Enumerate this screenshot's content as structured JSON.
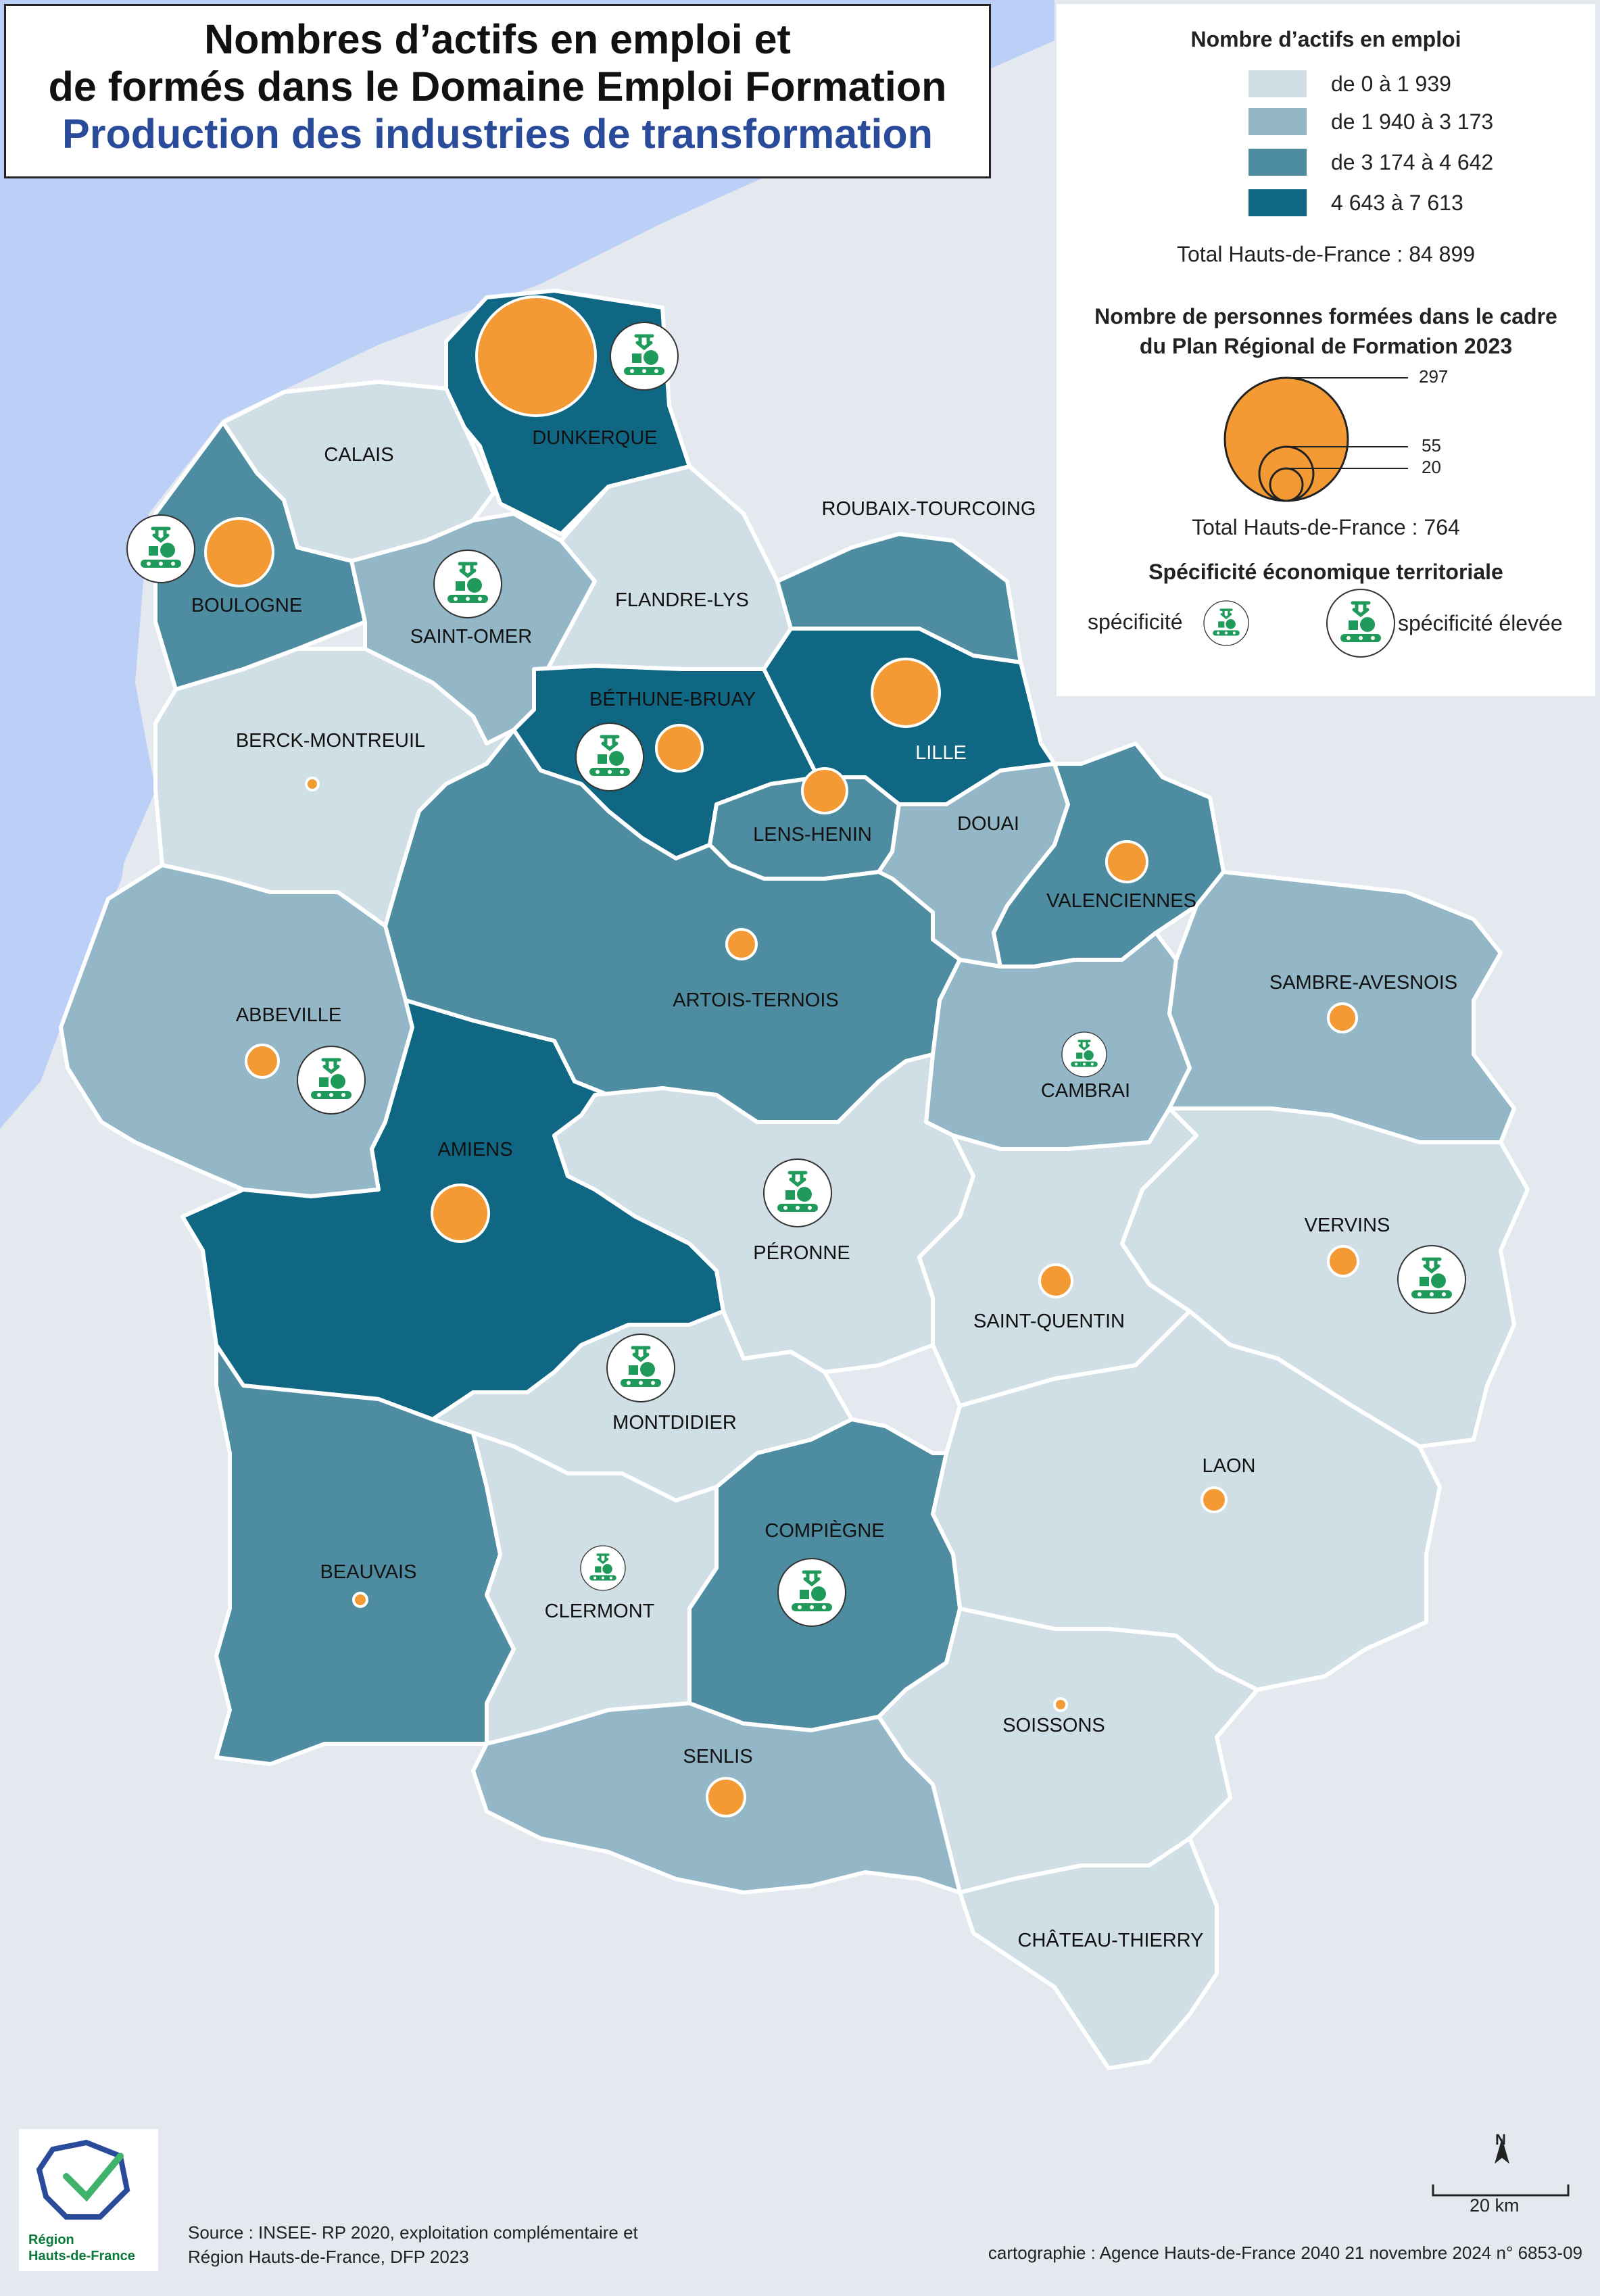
{
  "title": {
    "line1": "Nombres d’actifs en emploi et",
    "line2": "de formés dans le Domaine Emploi Formation",
    "line3": "Production des industries de transformation"
  },
  "legend": {
    "employment_title": "Nombre d’actifs en emploi",
    "classes": [
      {
        "label": "de 0 à 1 939",
        "color": "#d0dfe6"
      },
      {
        "label": "de 1 940 à 3 173",
        "color": "#93b7c6"
      },
      {
        "label": "de 3 174 à 4 642",
        "color": "#4d8ca1"
      },
      {
        "label": "4 643 à 7 613",
        "color": "#106783"
      }
    ],
    "employment_total": "Total Hauts-de-France : 84 899",
    "trained_title_1": "Nombre de personnes formées dans le cadre",
    "trained_title_2": "du Plan Régional de Formation 2023",
    "trained_sizes": [
      {
        "label": "297",
        "value": 297
      },
      {
        "label": "55",
        "value": 55
      },
      {
        "label": "20",
        "value": 20
      }
    ],
    "trained_total": "Total Hauts-de-France :  764",
    "specificity_title": "Spécificité économique territoriale",
    "specificity_label": "spécificité",
    "specificity_high_label": "spécificité élevée"
  },
  "colors": {
    "orange": "#f39a35",
    "sea": "#bcd0f7",
    "land_bg": "#e4e8ef",
    "icon_green": "#1f9a5a"
  },
  "zones": [
    {
      "id": "dunkerque",
      "name": "DUNKERQUE",
      "cls": 3,
      "trained": "large",
      "spec": "high"
    },
    {
      "id": "calais",
      "name": "CALAIS",
      "cls": 0
    },
    {
      "id": "boulogne",
      "name": "BOULOGNE",
      "cls": 2,
      "trained": "medium",
      "spec": "high"
    },
    {
      "id": "saint-omer",
      "name": "SAINT-OMER",
      "cls": 1,
      "spec": "high"
    },
    {
      "id": "flandre-lys",
      "name": "FLANDRE-LYS",
      "cls": 0
    },
    {
      "id": "roubaix-tourcoing",
      "name": "ROUBAIX-TOURCOING",
      "cls": 2
    },
    {
      "id": "lille",
      "name": "LILLE",
      "cls": 3,
      "trained": "medium"
    },
    {
      "id": "bethune-bruay",
      "name": "BÉTHUNE-BRUAY",
      "cls": 3,
      "trained": "small",
      "spec": "high"
    },
    {
      "id": "berck-montreuil",
      "name": "BERCK-MONTREUIL",
      "cls": 0,
      "trained": "tiny"
    },
    {
      "id": "lens-henin",
      "name": "LENS-HENIN",
      "cls": 2,
      "trained": "small"
    },
    {
      "id": "douai",
      "name": "DOUAI",
      "cls": 1
    },
    {
      "id": "valenciennes",
      "name": "VALENCIENNES",
      "cls": 2,
      "trained": "small"
    },
    {
      "id": "artois-ternois",
      "name": "ARTOIS-TERNOIS",
      "cls": 2,
      "trained": "small"
    },
    {
      "id": "abbeville",
      "name": "ABBEVILLE",
      "cls": 1,
      "trained": "small",
      "spec": "high"
    },
    {
      "id": "sambre-avesnois",
      "name": "SAMBRE-AVESNOIS",
      "cls": 1,
      "trained": "small"
    },
    {
      "id": "cambrai",
      "name": "CAMBRAI",
      "cls": 1,
      "spec": "normal"
    },
    {
      "id": "amiens",
      "name": "AMIENS",
      "cls": 3,
      "trained": "medium-small"
    },
    {
      "id": "peronne",
      "name": "PÉRONNE",
      "cls": 0,
      "spec": "high"
    },
    {
      "id": "vervins",
      "name": "VERVINS",
      "cls": 0,
      "trained": "small",
      "spec": "high"
    },
    {
      "id": "saint-quentin",
      "name": "SAINT-QUENTIN",
      "cls": 0,
      "trained": "small"
    },
    {
      "id": "montdidier",
      "name": "MONTDIDIER",
      "cls": 0,
      "spec": "high"
    },
    {
      "id": "laon",
      "name": "LAON",
      "cls": 0,
      "trained": "small"
    },
    {
      "id": "beauvais",
      "name": "BEAUVAIS",
      "cls": 2,
      "trained": "tiny"
    },
    {
      "id": "clermont",
      "name": "CLERMONT",
      "cls": 0,
      "spec": "normal"
    },
    {
      "id": "compiegne",
      "name": "COMPIÈGNE",
      "cls": 2,
      "spec": "high"
    },
    {
      "id": "soissons",
      "name": "SOISSONS",
      "cls": 0,
      "trained": "tiny"
    },
    {
      "id": "senlis",
      "name": "SENLIS",
      "cls": 1,
      "trained": "small"
    },
    {
      "id": "chateau-thierry",
      "name": "CHÂTEAU-THIERRY",
      "cls": 0
    }
  ],
  "scale": {
    "label": "20 km"
  },
  "north": {
    "label": "N"
  },
  "source": {
    "line1": "Source : INSEE- RP 2020, exploitation complémentaire et",
    "line2": "Région Hauts-de-France, DFP 2023"
  },
  "credit": "cartographie : Agence Hauts-de-France 2040  21 novembre 2024   n° 6853-09",
  "logo": {
    "line1": "Région",
    "line2": "Hauts-de-France"
  }
}
